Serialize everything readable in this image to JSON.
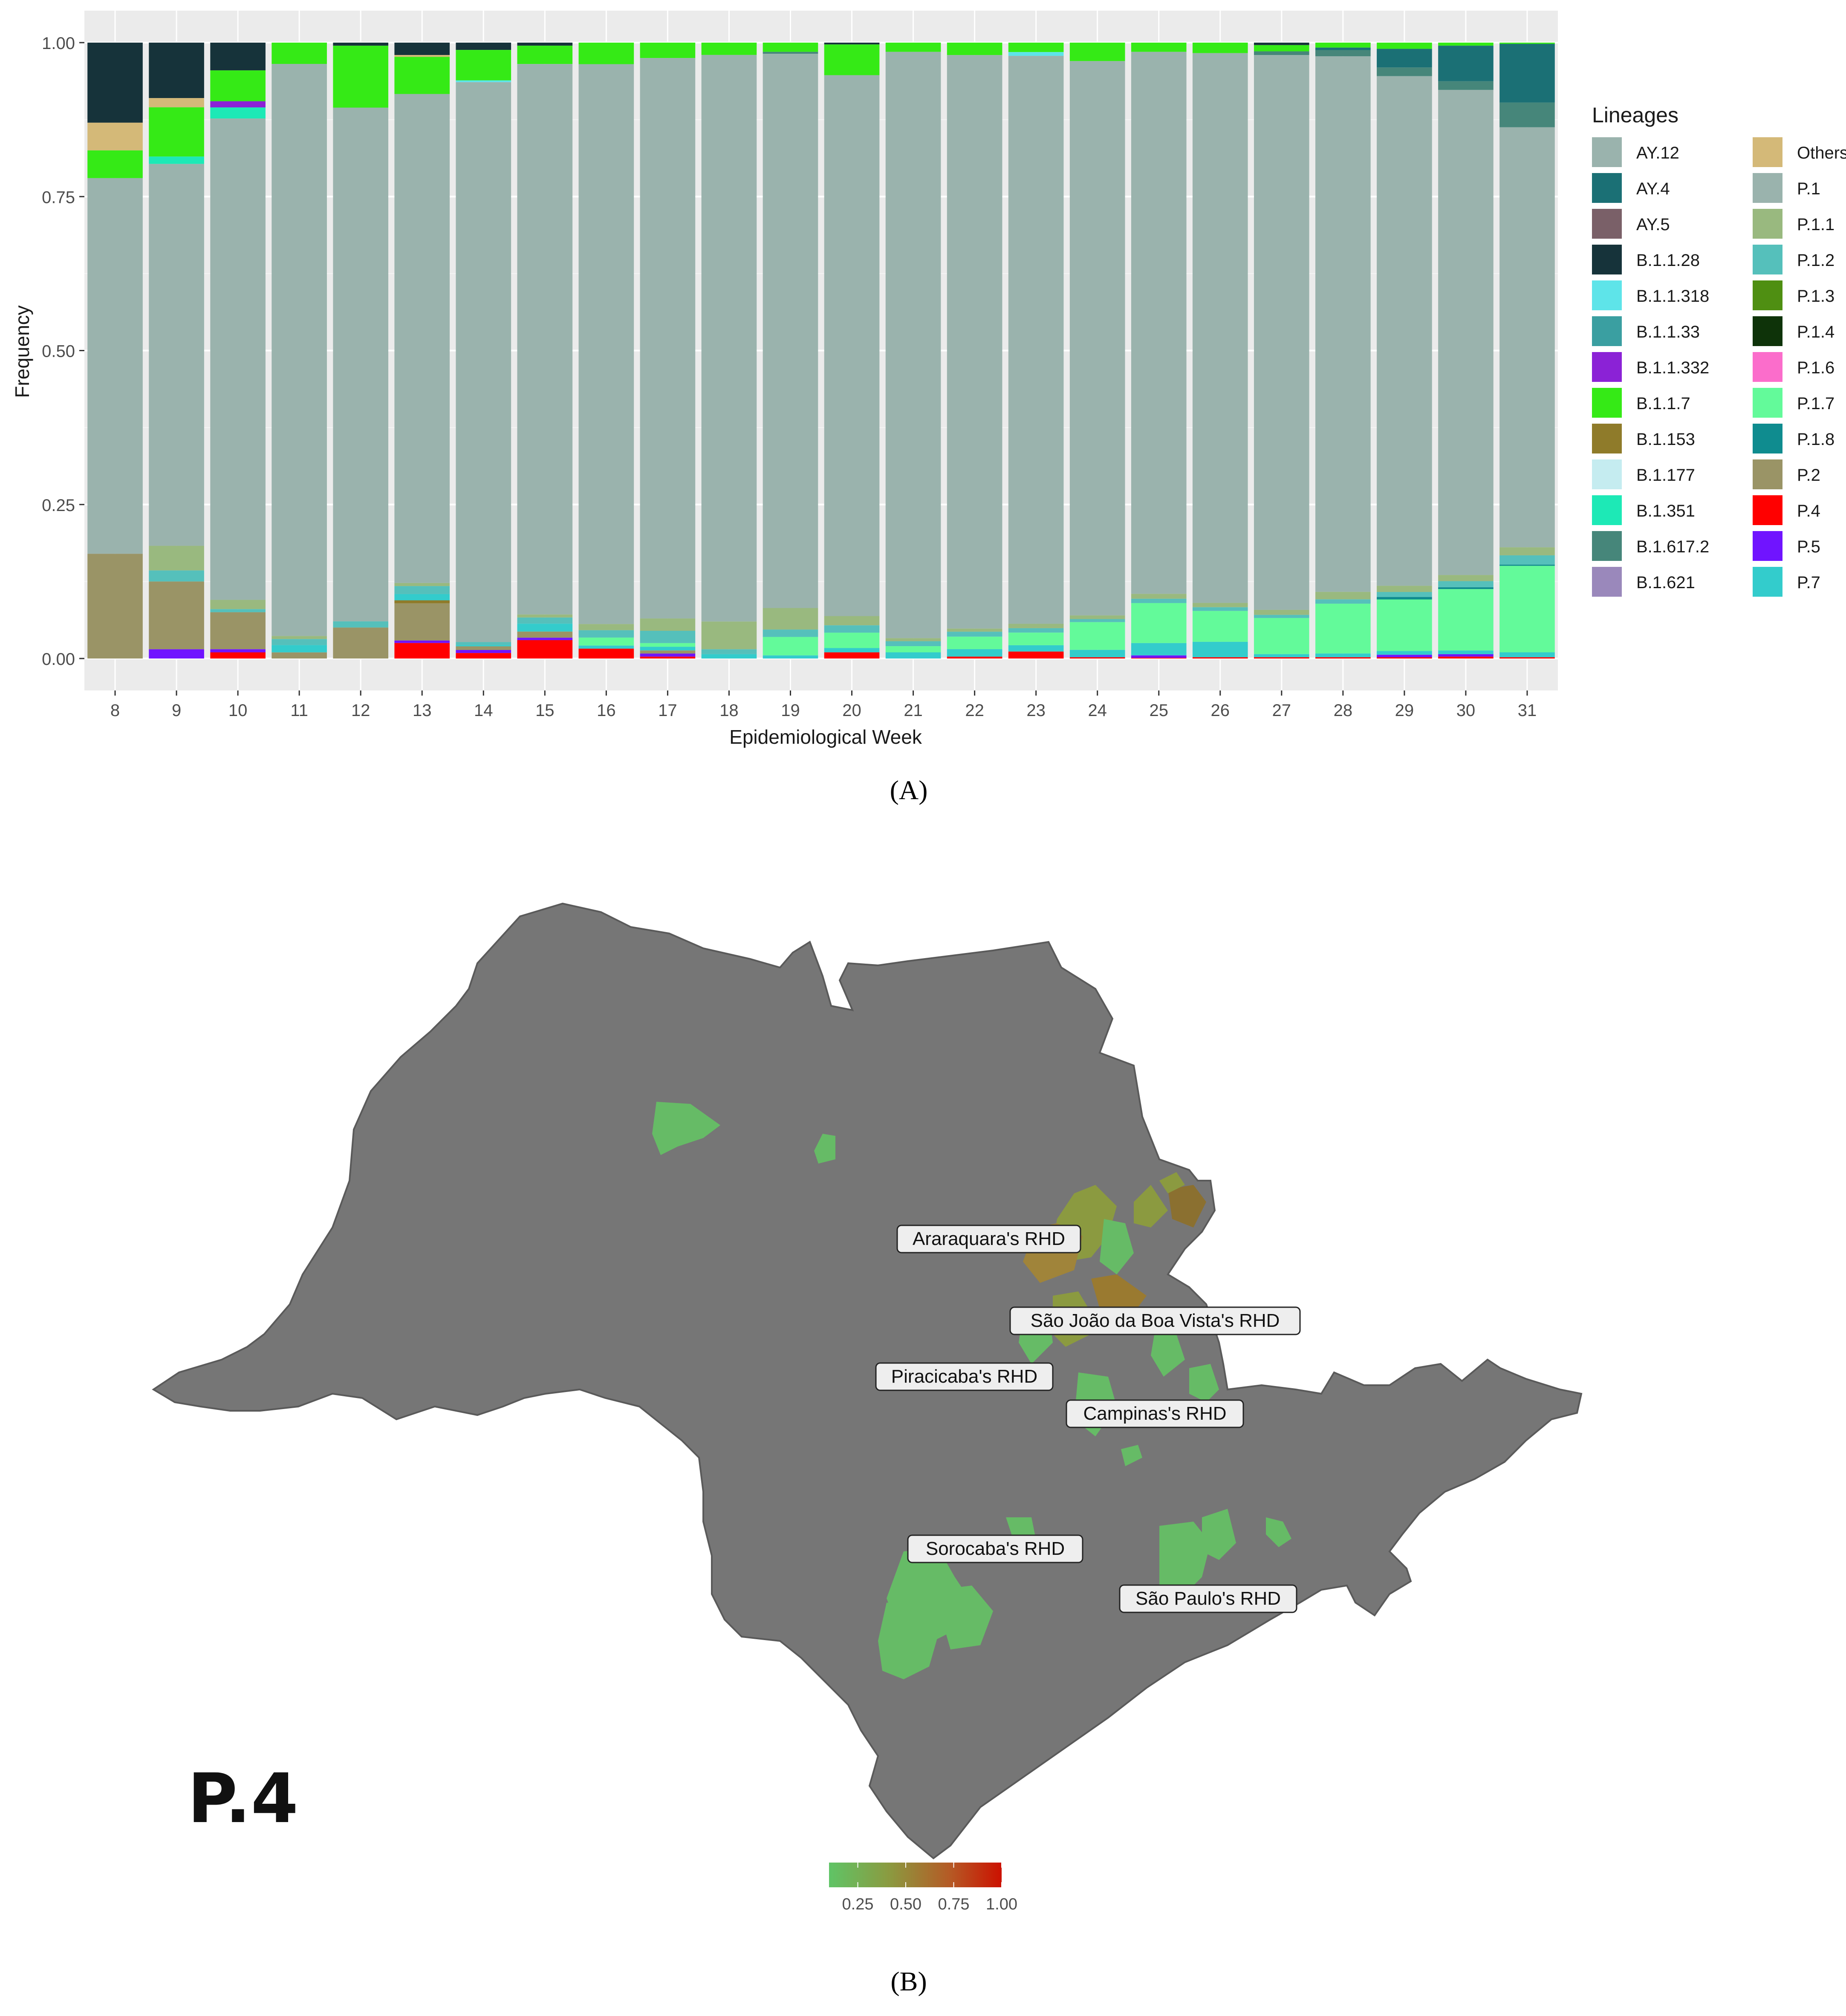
{
  "chart_data": [
    {
      "type": "bar",
      "stacked": true,
      "panel": "A",
      "xlabel": "Epidemiological Week",
      "ylabel": "Frequency",
      "ylim": [
        0,
        1
      ],
      "y_ticks": [
        "0.00",
        "0.25",
        "0.50",
        "0.75",
        "1.00"
      ],
      "categories": [
        "8",
        "9",
        "10",
        "11",
        "12",
        "13",
        "14",
        "15",
        "16",
        "17",
        "18",
        "19",
        "20",
        "21",
        "22",
        "23",
        "24",
        "25",
        "26",
        "27",
        "28",
        "29",
        "30",
        "31"
      ],
      "legend_title": "Lineages",
      "lineage_colors": {
        "AY.12": "#9ab3ad",
        "AY.4": "#1b7075",
        "AY.5": "#7a6068",
        "B.1.1.28": "#16333a",
        "B.1.1.318": "#5ee4e9",
        "B.1.1.33": "#3a9fa1",
        "B.1.1.332": "#8b22d6",
        "B.1.1.7": "#35ea16",
        "B.1.153": "#8f7b2a",
        "B.1.177": "#c5ecf0",
        "B.1.351": "#1de9b6",
        "B.1.617.2": "#46867a",
        "B.1.621": "#9a88bb",
        "Others": "#d4b978",
        "P.1": "#9ab3ad",
        "P.1.1": "#99b97f",
        "P.1.2": "#55c0bb",
        "P.1.3": "#4f8f12",
        "P.1.4": "#0e3309",
        "P.1.6": "#fb6dcb",
        "P.1.7": "#63fa9a",
        "P.1.8": "#0f8c8f",
        "P.2": "#9a9466",
        "P.4": "#ff0000",
        "P.5": "#7014ff",
        "P.7": "#33cccc"
      },
      "legend_col1": [
        "AY.12",
        "AY.4",
        "AY.5",
        "B.1.1.28",
        "B.1.1.318",
        "B.1.1.33",
        "B.1.1.332",
        "B.1.1.7",
        "B.1.153",
        "B.1.177",
        "B.1.351",
        "B.1.617.2",
        "B.1.621"
      ],
      "legend_col2": [
        "Others",
        "P.1",
        "P.1.1",
        "P.1.2",
        "P.1.3",
        "P.1.4",
        "P.1.6",
        "P.1.7",
        "P.1.8",
        "P.2",
        "P.4",
        "P.5",
        "P.7"
      ],
      "stack_order": [
        "B.1.1.28",
        "Others",
        "B.1.1.7",
        "B.1.1.332",
        "B.1.351",
        "B.1.1.318",
        "AY.4",
        "B.1.617.2",
        "P.1",
        "P.1.1",
        "P.1.2",
        "P.1.8",
        "P.1.7",
        "P.7",
        "B.1.153",
        "P.2",
        "P.5",
        "P.4"
      ],
      "series": [
        {
          "name": "B.1.1.28",
          "values": [
            0.13,
            0.09,
            0.045,
            0,
            0.005,
            0.02,
            0.012,
            0.005,
            0,
            0,
            0,
            0,
            0.003,
            0,
            0,
            0,
            0,
            0,
            0,
            0.004,
            0,
            0,
            0,
            0
          ]
        },
        {
          "name": "Others",
          "values": [
            0.045,
            0.015,
            0,
            0,
            0,
            0.003,
            0,
            0,
            0,
            0,
            0,
            0,
            0,
            0,
            0,
            0,
            0,
            0,
            0,
            0,
            0,
            0,
            0,
            0
          ]
        },
        {
          "name": "B.1.1.7",
          "values": [
            0.045,
            0.08,
            0.05,
            0.035,
            0.1,
            0.06,
            0.05,
            0.03,
            0.035,
            0.025,
            0.02,
            0.015,
            0.05,
            0.015,
            0.02,
            0.015,
            0.03,
            0.015,
            0.017,
            0.01,
            0.008,
            0.01,
            0.005,
            0.002
          ]
        },
        {
          "name": "B.1.1.332",
          "values": [
            0,
            0,
            0.01,
            0,
            0,
            0,
            0,
            0,
            0,
            0,
            0,
            0,
            0,
            0,
            0,
            0,
            0,
            0,
            0,
            0,
            0,
            0,
            0,
            0
          ]
        },
        {
          "name": "B.1.351",
          "values": [
            0,
            0.012,
            0.018,
            0,
            0,
            0,
            0,
            0,
            0,
            0,
            0,
            0,
            0,
            0,
            0,
            0,
            0,
            0,
            0,
            0,
            0,
            0,
            0,
            0
          ]
        },
        {
          "name": "B.1.1.318",
          "values": [
            0,
            0,
            0,
            0,
            0,
            0,
            0.003,
            0,
            0,
            0,
            0,
            0,
            0,
            0,
            0,
            0.006,
            0,
            0,
            0,
            0,
            0,
            0,
            0,
            0
          ]
        },
        {
          "name": "AY.4",
          "values": [
            0,
            0,
            0,
            0,
            0,
            0,
            0,
            0,
            0,
            0,
            0,
            0,
            0,
            0,
            0,
            0,
            0,
            0,
            0,
            0,
            0.004,
            0.03,
            0.058,
            0.095
          ]
        },
        {
          "name": "B.1.617.2",
          "values": [
            0,
            0,
            0,
            0,
            0,
            0,
            0,
            0,
            0,
            0,
            0,
            0.003,
            0,
            0,
            0,
            0,
            0,
            0,
            0,
            0.006,
            0.01,
            0.014,
            0.014,
            0.04
          ]
        },
        {
          "name": "P.1",
          "values": [
            0.61,
            0.62,
            0.78,
            0.94,
            0.83,
            0.79,
            0.92,
            0.9,
            0.91,
            0.91,
            0.92,
            0.9,
            0.88,
            0.95,
            0.92,
            0.9,
            0.9,
            0.88,
            0.89,
            0.89,
            0.86,
            0.82,
            0.79,
            0.68
          ]
        },
        {
          "name": "P.1.1",
          "values": [
            0,
            0.04,
            0.015,
            0.005,
            0,
            0.005,
            0,
            0.005,
            0.01,
            0.02,
            0.045,
            0.035,
            0.015,
            0.005,
            0.005,
            0.007,
            0.006,
            0.008,
            0.007,
            0.008,
            0.012,
            0.01,
            0.01,
            0.013
          ]
        },
        {
          "name": "P.1.2",
          "values": [
            0,
            0.018,
            0.005,
            0.01,
            0.01,
            0.013,
            0.005,
            0.01,
            0.012,
            0.02,
            0.008,
            0.012,
            0.012,
            0.008,
            0.008,
            0.007,
            0.005,
            0.007,
            0.006,
            0.005,
            0.007,
            0.008,
            0.01,
            0.015
          ]
        },
        {
          "name": "P.1.8",
          "values": [
            0,
            0,
            0,
            0,
            0,
            0,
            0,
            0,
            0,
            0,
            0,
            0,
            0,
            0,
            0,
            0,
            0,
            0,
            0,
            0,
            0,
            0.004,
            0.003,
            0.002
          ]
        },
        {
          "name": "P.1.7",
          "values": [
            0,
            0,
            0,
            0,
            0,
            0,
            0,
            0,
            0.013,
            0.006,
            0,
            0.03,
            0.025,
            0.01,
            0.02,
            0.02,
            0.045,
            0.065,
            0.05,
            0.058,
            0.08,
            0.083,
            0.1,
            0.14
          ]
        },
        {
          "name": "P.7",
          "values": [
            0,
            0,
            0,
            0.012,
            0,
            0.01,
            0.002,
            0.013,
            0.005,
            0.006,
            0.007,
            0.005,
            0.007,
            0.01,
            0.012,
            0.01,
            0.012,
            0.02,
            0.025,
            0.005,
            0.006,
            0.006,
            0.006,
            0.008
          ]
        },
        {
          "name": "B.1.153",
          "values": [
            0,
            0,
            0,
            0,
            0,
            0.005,
            0,
            0,
            0,
            0,
            0,
            0,
            0,
            0,
            0,
            0,
            0,
            0,
            0,
            0,
            0,
            0,
            0,
            0
          ]
        },
        {
          "name": "P.2",
          "values": [
            0.17,
            0.11,
            0.06,
            0.01,
            0.05,
            0.06,
            0.006,
            0.01,
            0,
            0.005,
            0,
            0,
            0,
            0,
            0,
            0,
            0,
            0,
            0,
            0,
            0,
            0,
            0,
            0
          ]
        },
        {
          "name": "P.5",
          "values": [
            0,
            0.015,
            0.005,
            0,
            0,
            0.004,
            0.005,
            0.004,
            0,
            0.005,
            0,
            0,
            0,
            0,
            0,
            0,
            0,
            0.004,
            0,
            0,
            0,
            0.004,
            0.004,
            0
          ]
        },
        {
          "name": "P.4",
          "values": [
            0,
            0,
            0.01,
            0,
            0,
            0.025,
            0.009,
            0.03,
            0.016,
            0.003,
            0,
            0,
            0.01,
            0,
            0.003,
            0.011,
            0.002,
            0.001,
            0.002,
            0.002,
            0.002,
            0.002,
            0.003,
            0.002
          ]
        }
      ]
    },
    {
      "type": "choropleth",
      "panel": "B",
      "lineage": "P.4",
      "colorbar_ticks": [
        "0.25",
        "0.50",
        "0.75",
        "1.00"
      ],
      "colorbar_range": [
        0.1,
        1.0
      ],
      "colorbar_colors": [
        "#5fc466",
        "#8b9a40",
        "#b55a25",
        "#cc1100"
      ],
      "regions": [
        {
          "label": "Araraquara's RHD",
          "value": 0.35
        },
        {
          "label": "São João da Boa Vista's RHD",
          "value": 0.35
        },
        {
          "label": "Piracicaba's RHD",
          "value": 0.2
        },
        {
          "label": "Campinas's RHD",
          "value": 0.15
        },
        {
          "label": "Sorocaba's RHD",
          "value": 0.15
        },
        {
          "label": "São Paulo's RHD",
          "value": 0.12
        }
      ]
    }
  ],
  "captions": {
    "panel_a": "(A)",
    "panel_b": "(B)"
  }
}
